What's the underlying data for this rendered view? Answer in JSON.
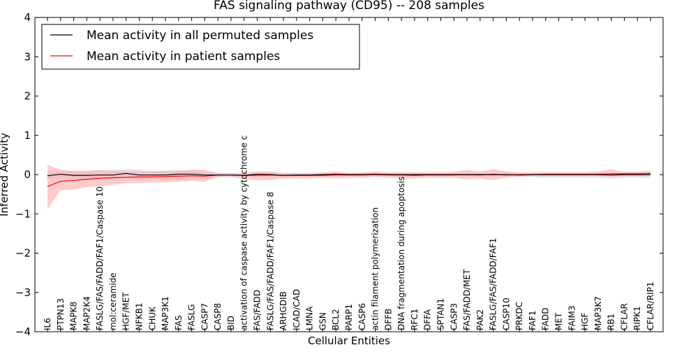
{
  "chart_data": {
    "type": "line",
    "title": "FAS signaling pathway (CD95) -- 208 samples",
    "xlabel": "Cellular Entities",
    "ylabel": "Inferred Activity",
    "ylim": [
      -4,
      4
    ],
    "yticks": [
      "−4",
      "−3",
      "−2",
      "−1",
      "0",
      "1",
      "2",
      "3",
      "4"
    ],
    "ytick_values": [
      -4,
      -3,
      -2,
      -1,
      0,
      1,
      2,
      3,
      4
    ],
    "grid": false,
    "legend_position": "top-left",
    "categories": [
      "IL6",
      "PTPN13",
      "MAPK8",
      "MAP2K4",
      "FASLG/FAS/FADD/FAF1/Caspase 10",
      "mol:ceramide",
      "HGF/MET",
      "NFKB1",
      "CHUK",
      "MAP3K1",
      "FAS",
      "FASLG",
      "CASP7",
      "CASP8",
      "BID",
      "activation of caspase activity by cytochrome c",
      "FAS/FADD",
      "FASLG/FAS/FADD/FAF1/Caspase 8",
      "ARHGDIB",
      "ICAD/CAD",
      "LMNA",
      "GSN",
      "BCL2",
      "PARP1",
      "CASP6",
      "actin filament polymerization",
      "DFFB",
      "DNA fragmentation during apoptosis",
      "RFC1",
      "DFFA",
      "SPTAN1",
      "CASP3",
      "FAS/FADD/MET",
      "PAK2",
      "FASLG/FAS/FADD/FAF1",
      "CASP10",
      "PRKDC",
      "FAF1",
      "FADD",
      "MET",
      "FAIM3",
      "HGF",
      "MAP3K7",
      "RB1",
      "CFLAR",
      "RIPK1",
      "CFLAR/RIP1"
    ],
    "series": [
      {
        "name": "Mean activity in all permuted samples",
        "color": "#000000",
        "band_color": "#c8c8d8",
        "values": [
          -0.03,
          0.01,
          -0.02,
          -0.02,
          -0.01,
          -0.01,
          0.03,
          -0.01,
          -0.01,
          -0.01,
          0.01,
          0.01,
          -0.01,
          -0.01,
          -0.01,
          -0.02,
          0.01,
          0.0,
          -0.02,
          -0.01,
          -0.01,
          0.0,
          0.01,
          0.0,
          0.0,
          0.01,
          0.0,
          0.0,
          0.0,
          0.0,
          0.0,
          0.0,
          0.0,
          0.0,
          0.0,
          0.0,
          -0.01,
          0.0,
          0.0,
          0.0,
          0.0,
          0.0,
          0.0,
          -0.01,
          0.0,
          0.0,
          0.0
        ],
        "lower": [
          -0.12,
          -0.1,
          -0.13,
          -0.14,
          -0.15,
          -0.12,
          -0.1,
          -0.13,
          -0.12,
          -0.12,
          -0.1,
          -0.1,
          -0.12,
          -0.06,
          -0.05,
          -0.05,
          -0.06,
          -0.06,
          -0.06,
          -0.06,
          -0.06,
          -0.05,
          -0.05,
          -0.06,
          -0.05,
          -0.05,
          -0.05,
          -0.06,
          -0.05,
          -0.05,
          -0.05,
          -0.05,
          -0.05,
          -0.06,
          -0.06,
          -0.05,
          -0.06,
          -0.06,
          -0.08,
          -0.08,
          -0.08,
          -0.08,
          -0.08,
          -0.1,
          -0.08,
          -0.08,
          -0.08
        ],
        "upper": [
          0.06,
          0.1,
          0.08,
          0.08,
          0.1,
          0.12,
          0.14,
          0.12,
          0.1,
          0.1,
          0.11,
          0.1,
          0.07,
          0.05,
          0.04,
          0.03,
          0.05,
          0.05,
          0.04,
          0.04,
          0.04,
          0.05,
          0.05,
          0.04,
          0.04,
          0.05,
          0.05,
          0.04,
          0.04,
          0.04,
          0.04,
          0.05,
          0.05,
          0.05,
          0.05,
          0.05,
          0.04,
          0.04,
          0.05,
          0.05,
          0.05,
          0.05,
          0.05,
          0.05,
          0.06,
          0.06,
          0.07
        ]
      },
      {
        "name": "Mean activity in patient samples",
        "color": "#ff0000",
        "band_color": "#ffaaaa",
        "values": [
          -0.3,
          -0.17,
          -0.15,
          -0.12,
          -0.09,
          -0.08,
          -0.07,
          -0.06,
          -0.06,
          -0.05,
          -0.04,
          -0.03,
          -0.04,
          -0.01,
          -0.01,
          -0.02,
          -0.02,
          -0.01,
          -0.02,
          -0.02,
          -0.02,
          -0.02,
          -0.01,
          -0.01,
          -0.01,
          0.0,
          -0.01,
          -0.01,
          -0.02,
          -0.01,
          -0.01,
          -0.01,
          0.0,
          -0.01,
          0.01,
          -0.01,
          0.0,
          0.0,
          0.01,
          0.01,
          0.01,
          0.01,
          0.01,
          0.02,
          0.02,
          0.02,
          0.03
        ],
        "lower": [
          -0.88,
          -0.4,
          -0.38,
          -0.32,
          -0.3,
          -0.26,
          -0.22,
          -0.22,
          -0.2,
          -0.2,
          -0.18,
          -0.16,
          -0.18,
          -0.06,
          -0.06,
          -0.12,
          -0.14,
          -0.14,
          -0.1,
          -0.1,
          -0.1,
          -0.08,
          -0.1,
          -0.08,
          -0.08,
          -0.06,
          -0.08,
          -0.1,
          -0.1,
          -0.08,
          -0.08,
          -0.08,
          -0.12,
          -0.1,
          -0.14,
          -0.08,
          -0.06,
          -0.04,
          -0.04,
          -0.04,
          -0.04,
          -0.04,
          -0.04,
          -0.06,
          -0.04,
          -0.04,
          -0.02
        ],
        "upper": [
          0.25,
          0.12,
          0.1,
          0.1,
          0.12,
          0.1,
          0.08,
          0.08,
          0.08,
          0.08,
          0.1,
          0.12,
          0.12,
          0.04,
          0.04,
          0.03,
          0.08,
          0.08,
          0.04,
          0.04,
          0.04,
          0.05,
          0.08,
          0.05,
          0.06,
          0.08,
          0.06,
          0.06,
          0.06,
          0.06,
          0.06,
          0.07,
          0.12,
          0.08,
          0.14,
          0.08,
          0.06,
          0.06,
          0.06,
          0.06,
          0.06,
          0.06,
          0.08,
          0.14,
          0.07,
          0.08,
          0.1
        ]
      }
    ]
  }
}
